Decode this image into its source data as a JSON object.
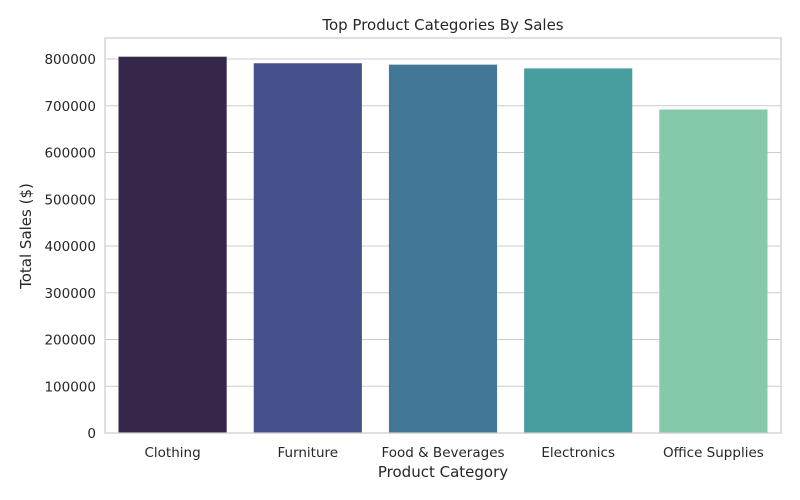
{
  "chart_data": {
    "type": "bar",
    "title": "Top Product Categories By Sales",
    "xlabel": "Product Category",
    "ylabel": "Total Sales ($)",
    "categories": [
      "Clothing",
      "Furniture",
      "Food & Beverages",
      "Electronics",
      "Office Supplies"
    ],
    "values": [
      805000,
      791000,
      788000,
      780000,
      692000
    ],
    "ylim": [
      0,
      845000
    ],
    "yticks": [
      0,
      100000,
      200000,
      300000,
      400000,
      500000,
      600000,
      700000,
      800000
    ],
    "ytick_labels": [
      "0",
      "100000",
      "200000",
      "300000",
      "400000",
      "500000",
      "600000",
      "700000",
      "800000"
    ],
    "colors": [
      "#35274a",
      "#46508a",
      "#427797",
      "#489e9e",
      "#84c9a8"
    ],
    "grid": true,
    "legend": "none"
  }
}
